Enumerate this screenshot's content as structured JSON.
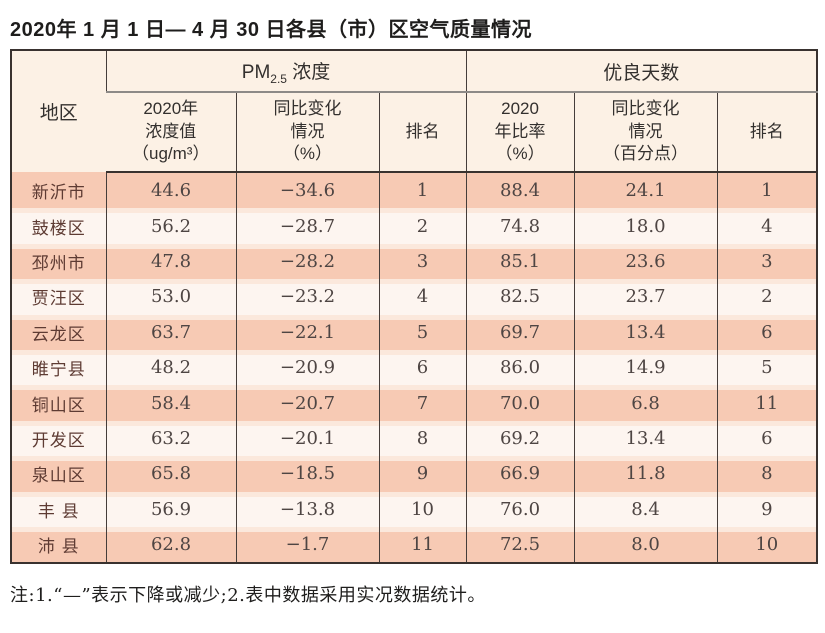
{
  "title": "2020年 1 月 1 日— 4 月 30 日各县（市）区空气质量情况",
  "note": "注:1.“—”表示下降或减少;2.表中数据采用实况数据统计。",
  "colors": {
    "row_odd": "#f7cab4",
    "row_even": "#fdf5f0",
    "row_gap": "#fbe8dc",
    "header_bg": "#fcf1e5",
    "border_dark": "#39322f",
    "border_gray": "#8d8a87",
    "region_text": "#5e3b33",
    "number_text": "#4e4543"
  },
  "table": {
    "region_header": "地区",
    "groups": {
      "pm": {
        "prefix": "PM",
        "sub": "2.5",
        "suffix": " 浓度"
      },
      "good_days": {
        "label": "优良天数"
      }
    },
    "subheaders": {
      "pm_value": "2020年\n浓度值\n（ug/m³）",
      "pm_change": "同比变化\n情况\n（%）",
      "pm_rank": "排名",
      "rate": "2020\n年比率\n（%）",
      "rate_change": "同比变化\n情况\n（百分点）",
      "rank": "排名"
    },
    "rows": [
      {
        "region": "新沂市",
        "pm_value": "44.6",
        "pm_change": "−34.6",
        "pm_rank": "1",
        "rate": "88.4",
        "rate_change": "24.1",
        "rank": "1"
      },
      {
        "region": "鼓楼区",
        "pm_value": "56.2",
        "pm_change": "−28.7",
        "pm_rank": "2",
        "rate": "74.8",
        "rate_change": "18.0",
        "rank": "4"
      },
      {
        "region": "邳州市",
        "pm_value": "47.8",
        "pm_change": "−28.2",
        "pm_rank": "3",
        "rate": "85.1",
        "rate_change": "23.6",
        "rank": "3"
      },
      {
        "region": "贾汪区",
        "pm_value": "53.0",
        "pm_change": "−23.2",
        "pm_rank": "4",
        "rate": "82.5",
        "rate_change": "23.7",
        "rank": "2"
      },
      {
        "region": "云龙区",
        "pm_value": "63.7",
        "pm_change": "−22.1",
        "pm_rank": "5",
        "rate": "69.7",
        "rate_change": "13.4",
        "rank": "6"
      },
      {
        "region": "睢宁县",
        "pm_value": "48.2",
        "pm_change": "−20.9",
        "pm_rank": "6",
        "rate": "86.0",
        "rate_change": "14.9",
        "rank": "5"
      },
      {
        "region": "铜山区",
        "pm_value": "58.4",
        "pm_change": "−20.7",
        "pm_rank": "7",
        "rate": "70.0",
        "rate_change": "6.8",
        "rank": "11"
      },
      {
        "region": "开发区",
        "pm_value": "63.2",
        "pm_change": "−20.1",
        "pm_rank": "8",
        "rate": "69.2",
        "rate_change": "13.4",
        "rank": "6"
      },
      {
        "region": "泉山区",
        "pm_value": "65.8",
        "pm_change": "−18.5",
        "pm_rank": "9",
        "rate": "66.9",
        "rate_change": "11.8",
        "rank": "8"
      },
      {
        "region": "丰 县",
        "pm_value": "56.9",
        "pm_change": "−13.8",
        "pm_rank": "10",
        "rate": "76.0",
        "rate_change": "8.4",
        "rank": "9"
      },
      {
        "region": "沛 县",
        "pm_value": "62.8",
        "pm_change": "−1.7",
        "pm_rank": "11",
        "rate": "72.5",
        "rate_change": "8.0",
        "rank": "10"
      }
    ]
  }
}
